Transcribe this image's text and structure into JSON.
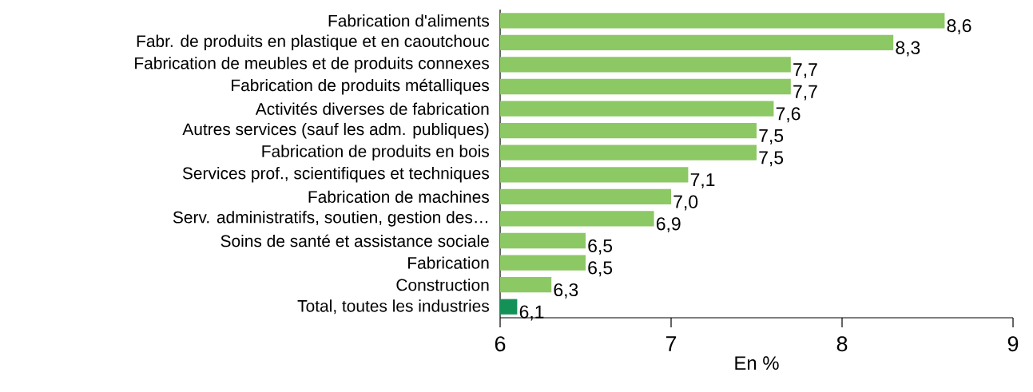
{
  "chart_data": {
    "type": "bar",
    "orientation": "horizontal",
    "xlabel": "En %",
    "categories": [
      "Fabrication d'aliments",
      "Fabr. de produits en plastique et en caoutchouc",
      "Fabrication de meubles et de produits connexes",
      "Fabrication de produits métalliques",
      "Activités diverses de fabrication",
      "Autres services (sauf les adm. publiques)",
      "Fabrication de produits en bois",
      "Services prof., scientifiques et techniques",
      "Fabrication de machines",
      "Serv. administratifs, soutien, gestion des…",
      "Soins de santé et assistance sociale",
      "Fabrication",
      "Construction",
      "Total, toutes les industries"
    ],
    "values": [
      8.6,
      8.3,
      7.7,
      7.7,
      7.6,
      7.5,
      7.5,
      7.1,
      7.0,
      6.9,
      6.5,
      6.5,
      6.3,
      6.1
    ],
    "value_labels": [
      "8,6",
      "8,3",
      "7,7",
      "7,7",
      "7,6",
      "7,5",
      "7,5",
      "7,1",
      "7,0",
      "6,9",
      "6,5",
      "6,5",
      "6,3",
      "6,1"
    ],
    "colors": [
      "#8cc864",
      "#8cc864",
      "#8cc864",
      "#8cc864",
      "#8cc864",
      "#8cc864",
      "#8cc864",
      "#8cc864",
      "#8cc864",
      "#8cc864",
      "#8cc864",
      "#8cc864",
      "#8cc864",
      "#149157"
    ],
    "xlim": [
      6,
      9
    ],
    "xticks": [
      6,
      7,
      8,
      9
    ],
    "grid": false
  }
}
